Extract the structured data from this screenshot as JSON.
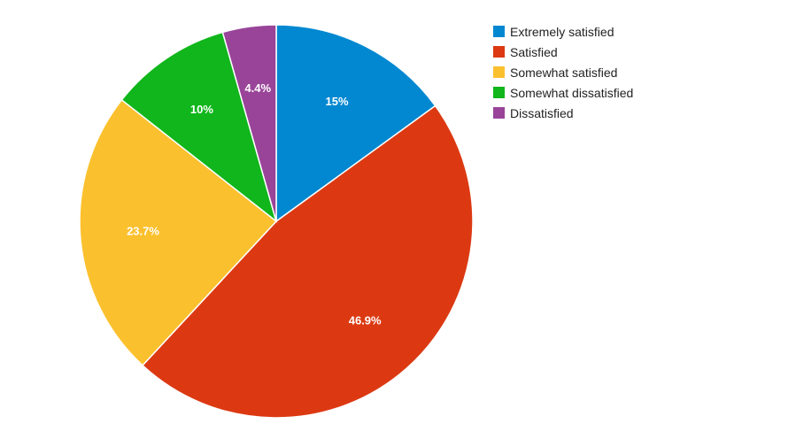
{
  "chart_data": {
    "type": "pie",
    "categories": [
      "Extremely satisfied",
      "Satisfied",
      "Somewhat satisfied",
      "Somewhat dissatisfied",
      "Dissatisfied"
    ],
    "values": [
      15,
      46.9,
      23.7,
      10,
      4.4
    ],
    "data_labels": [
      "15%",
      "46.9%",
      "23.7%",
      "10%",
      "4.4%"
    ],
    "colors": [
      "#0288d1",
      "#dc3912",
      "#fbc02d",
      "#10b61b",
      "#994499"
    ],
    "legend": {
      "position": "right",
      "items": [
        {
          "label": "Extremely satisfied",
          "color": "#0288d1"
        },
        {
          "label": "Satisfied",
          "color": "#dc3912"
        },
        {
          "label": "Somewhat satisfied",
          "color": "#fbc02d"
        },
        {
          "label": "Somewhat dissatisfied",
          "color": "#10b61b"
        },
        {
          "label": "Dissatisfied",
          "color": "#994499"
        }
      ]
    },
    "start_angle_deg": 0,
    "direction": "clockwise"
  }
}
